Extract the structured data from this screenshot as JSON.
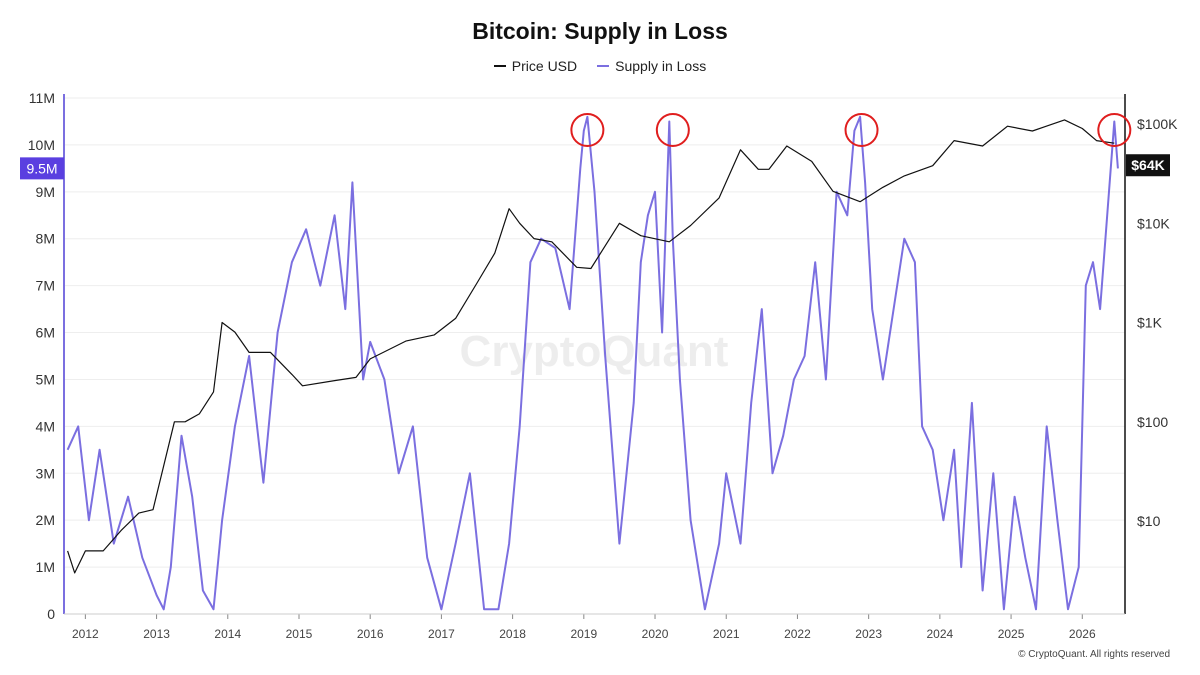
{
  "chart_data": {
    "type": "line",
    "title": "Bitcoin: Supply in Loss",
    "legend": {
      "placement": "top-center",
      "entries": [
        "Price USD",
        "Supply in Loss"
      ]
    },
    "colors": {
      "price": "#111111",
      "supply": "#7b6fe0",
      "marker": "#e01e1e",
      "current_supply_badge": "#5a3fe0",
      "current_price_badge": "#111111"
    },
    "grid": true,
    "x_axis": {
      "ticks": [
        "2012",
        "2013",
        "2014",
        "2015",
        "2016",
        "2017",
        "2018",
        "2019",
        "2020",
        "2021",
        "2022",
        "2023",
        "2024",
        "2025",
        "2026"
      ],
      "range": [
        2011.7,
        2026.6
      ]
    },
    "y_left": {
      "name": "Supply in Loss",
      "ticks": [
        "0",
        "1M",
        "2M",
        "3M",
        "4M",
        "5M",
        "6M",
        "7M",
        "8M",
        "9M",
        "10M",
        "11M"
      ],
      "range": [
        0,
        11000000
      ],
      "current_value_label": "9.5M"
    },
    "y_right": {
      "name": "Price USD",
      "scale": "log",
      "ticks": [
        "$10",
        "$100",
        "$1K",
        "$10K",
        "$100K"
      ],
      "current_value_label": "$64K"
    },
    "series": [
      {
        "name": "Price USD",
        "x": [
          2011.75,
          2011.85,
          2012.0,
          2012.25,
          2012.5,
          2012.75,
          2012.95,
          2013.25,
          2013.4,
          2013.6,
          2013.8,
          2013.92,
          2014.1,
          2014.3,
          2014.6,
          2014.9,
          2015.05,
          2015.5,
          2015.8,
          2016.0,
          2016.5,
          2016.9,
          2017.2,
          2017.5,
          2017.75,
          2017.95,
          2018.1,
          2018.3,
          2018.55,
          2018.9,
          2019.1,
          2019.5,
          2019.8,
          2020.2,
          2020.5,
          2020.9,
          2021.2,
          2021.45,
          2021.6,
          2021.85,
          2022.2,
          2022.5,
          2022.88,
          2023.2,
          2023.5,
          2023.9,
          2024.2,
          2024.6,
          2024.95,
          2025.3,
          2025.75,
          2026.0,
          2026.2,
          2026.45
        ],
        "y": [
          5,
          3,
          5,
          5,
          8,
          12,
          13,
          100,
          100,
          120,
          200,
          1000,
          800,
          500,
          500,
          300,
          230,
          260,
          280,
          430,
          650,
          750,
          1100,
          2500,
          5000,
          14000,
          10000,
          7000,
          6500,
          3600,
          3500,
          10000,
          7500,
          6500,
          9500,
          18000,
          55000,
          35000,
          35000,
          60000,
          42000,
          21000,
          16500,
          23000,
          30000,
          38000,
          68000,
          60000,
          95000,
          85000,
          110000,
          90000,
          68000,
          64000
        ]
      },
      {
        "name": "Supply in Loss",
        "x": [
          2011.75,
          2011.9,
          2012.05,
          2012.2,
          2012.4,
          2012.6,
          2012.8,
          2013.0,
          2013.1,
          2013.2,
          2013.35,
          2013.5,
          2013.65,
          2013.8,
          2013.92,
          2014.1,
          2014.3,
          2014.5,
          2014.7,
          2014.9,
          2015.1,
          2015.3,
          2015.5,
          2015.65,
          2015.75,
          2015.9,
          2016.0,
          2016.2,
          2016.4,
          2016.6,
          2016.8,
          2017.0,
          2017.2,
          2017.4,
          2017.6,
          2017.8,
          2017.95,
          2018.1,
          2018.25,
          2018.4,
          2018.6,
          2018.8,
          2018.95,
          2019.0,
          2019.05,
          2019.15,
          2019.3,
          2019.5,
          2019.7,
          2019.8,
          2019.9,
          2020.0,
          2020.1,
          2020.2,
          2020.25,
          2020.35,
          2020.5,
          2020.7,
          2020.9,
          2021.0,
          2021.2,
          2021.35,
          2021.5,
          2021.65,
          2021.8,
          2021.95,
          2022.1,
          2022.25,
          2022.4,
          2022.55,
          2022.7,
          2022.8,
          2022.88,
          2022.95,
          2023.05,
          2023.2,
          2023.35,
          2023.5,
          2023.65,
          2023.75,
          2023.9,
          2024.05,
          2024.2,
          2024.3,
          2024.45,
          2024.6,
          2024.75,
          2024.9,
          2025.05,
          2025.2,
          2025.35,
          2025.5,
          2025.65,
          2025.8,
          2025.95,
          2026.05,
          2026.15,
          2026.25,
          2026.35,
          2026.45,
          2026.5
        ],
        "y": [
          3500000,
          4000000,
          2000000,
          3500000,
          1500000,
          2500000,
          1200000,
          400000,
          100000,
          1000000,
          3800000,
          2500000,
          500000,
          100000,
          2000000,
          4000000,
          5500000,
          2800000,
          6000000,
          7500000,
          8200000,
          7000000,
          8500000,
          6500000,
          9200000,
          5000000,
          5800000,
          5000000,
          3000000,
          4000000,
          1200000,
          100000,
          1500000,
          3000000,
          100000,
          100000,
          1500000,
          4000000,
          7500000,
          8000000,
          7800000,
          6500000,
          9500000,
          10300000,
          10600000,
          9000000,
          5500000,
          1500000,
          4500000,
          7500000,
          8500000,
          9000000,
          6000000,
          10500000,
          8000000,
          5000000,
          2000000,
          100000,
          1500000,
          3000000,
          1500000,
          4500000,
          6500000,
          3000000,
          3800000,
          5000000,
          5500000,
          7500000,
          5000000,
          9000000,
          8500000,
          10300000,
          10600000,
          9200000,
          6500000,
          5000000,
          6500000,
          8000000,
          7500000,
          4000000,
          3500000,
          2000000,
          3500000,
          1000000,
          4500000,
          500000,
          3000000,
          100000,
          2500000,
          1200000,
          100000,
          4000000,
          2000000,
          100000,
          1000000,
          7000000,
          7500000,
          6500000,
          8500000,
          10500000,
          9500000
        ]
      }
    ],
    "highlight_circles_at_x": [
      2019.05,
      2020.25,
      2022.9,
      2026.45
    ],
    "watermark": "CryptoQuant"
  },
  "copyright": "© CryptoQuant. All rights reserved"
}
